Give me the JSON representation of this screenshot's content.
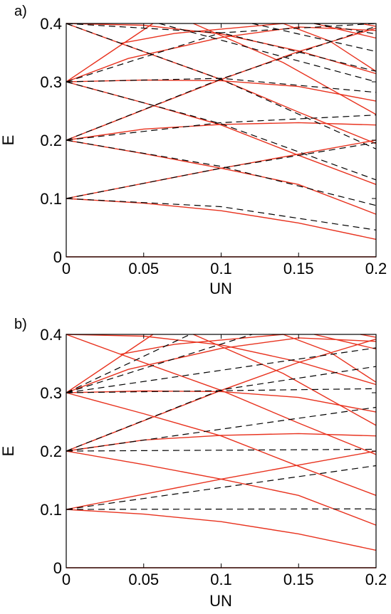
{
  "chart_data": [
    {
      "panel": "a)",
      "type": "line",
      "xlabel": "UN",
      "ylabel": "E",
      "xlim": [
        0,
        0.2
      ],
      "ylim": [
        0,
        0.4
      ],
      "xticks": [
        "0",
        "0.05",
        "0.1",
        "0.15",
        "0.2"
      ],
      "yticks": [
        "0",
        "0.1",
        "0.2",
        "0.3",
        "0.4"
      ],
      "colors": {
        "solid": "#e8321e",
        "dashed": "#000000"
      },
      "solid": [
        [
          [
            0,
            0.1
          ],
          [
            0.05,
            0.092
          ],
          [
            0.1,
            0.079
          ],
          [
            0.15,
            0.058
          ],
          [
            0.2,
            0.03
          ]
        ],
        [
          [
            0,
            0.1
          ],
          [
            0.05,
            0.126
          ],
          [
            0.1,
            0.152
          ],
          [
            0.15,
            0.176
          ],
          [
            0.2,
            0.2
          ]
        ],
        [
          [
            0,
            0.2
          ],
          [
            0.05,
            0.177
          ],
          [
            0.1,
            0.152
          ],
          [
            0.15,
            0.124
          ],
          [
            0.2,
            0.073
          ]
        ],
        [
          [
            0,
            0.2
          ],
          [
            0.05,
            0.219
          ],
          [
            0.1,
            0.227
          ],
          [
            0.15,
            0.23
          ],
          [
            0.2,
            0.226
          ]
        ],
        [
          [
            0,
            0.2
          ],
          [
            0.05,
            0.252
          ],
          [
            0.1,
            0.304
          ],
          [
            0.15,
            0.352
          ],
          [
            0.2,
            0.392
          ]
        ],
        [
          [
            0,
            0.3
          ],
          [
            0.05,
            0.264
          ],
          [
            0.1,
            0.226
          ],
          [
            0.15,
            0.174
          ],
          [
            0.2,
            0.124
          ]
        ],
        [
          [
            0,
            0.3
          ],
          [
            0.05,
            0.303
          ],
          [
            0.1,
            0.302
          ],
          [
            0.15,
            0.292
          ],
          [
            0.2,
            0.267
          ]
        ],
        [
          [
            0,
            0.3
          ],
          [
            0.04,
            0.34
          ],
          [
            0.1,
            0.376
          ],
          [
            0.15,
            0.394
          ],
          [
            0.2,
            0.388
          ]
        ],
        [
          [
            0,
            0.3
          ],
          [
            0.056,
            0.4
          ]
        ],
        [
          [
            0,
            0.4
          ],
          [
            0.05,
            0.397
          ],
          [
            0.1,
            0.382
          ],
          [
            0.15,
            0.353
          ],
          [
            0.2,
            0.314
          ]
        ],
        [
          [
            0,
            0.4
          ],
          [
            0.035,
            0.366
          ],
          [
            0.1,
            0.304
          ],
          [
            0.15,
            0.248
          ],
          [
            0.2,
            0.194
          ]
        ],
        [
          [
            0.035,
            0.366
          ],
          [
            0.07,
            0.383
          ],
          [
            0.14,
            0.4
          ]
        ],
        [
          [
            0.14,
            0.4
          ],
          [
            0.17,
            0.37
          ],
          [
            0.2,
            0.318
          ]
        ],
        [
          [
            0.082,
            0.4
          ],
          [
            0.14,
            0.333
          ],
          [
            0.2,
            0.244
          ]
        ],
        [
          [
            0.16,
            0.4
          ],
          [
            0.2,
            0.375
          ]
        ],
        [
          [
            0.19,
            0.4
          ],
          [
            0.2,
            0.395
          ]
        ]
      ],
      "dashed": [
        [
          [
            0,
            0.1
          ],
          [
            0.1,
            0.086
          ],
          [
            0.2,
            0.046
          ]
        ],
        [
          [
            0,
            0.1
          ],
          [
            0.1,
            0.152
          ],
          [
            0.2,
            0.196
          ]
        ],
        [
          [
            0,
            0.2
          ],
          [
            0.1,
            0.155
          ],
          [
            0.2,
            0.088
          ]
        ],
        [
          [
            0,
            0.2
          ],
          [
            0.1,
            0.23
          ],
          [
            0.2,
            0.243
          ]
        ],
        [
          [
            0,
            0.2
          ],
          [
            0.1,
            0.305
          ],
          [
            0.2,
            0.395
          ]
        ],
        [
          [
            0,
            0.3
          ],
          [
            0.1,
            0.228
          ],
          [
            0.2,
            0.132
          ]
        ],
        [
          [
            0,
            0.3
          ],
          [
            0.1,
            0.306
          ],
          [
            0.2,
            0.282
          ]
        ],
        [
          [
            0,
            0.3
          ],
          [
            0.1,
            0.384
          ],
          [
            0.2,
            0.4
          ]
        ],
        [
          [
            0,
            0.4
          ],
          [
            0.1,
            0.384
          ],
          [
            0.2,
            0.318
          ]
        ],
        [
          [
            0,
            0.4
          ],
          [
            0.1,
            0.304
          ],
          [
            0.2,
            0.185
          ]
        ],
        [
          [
            0.06,
            0.4
          ],
          [
            0.2,
            0.3
          ]
        ],
        [
          [
            0.12,
            0.4
          ],
          [
            0.2,
            0.352
          ]
        ],
        [
          [
            0.16,
            0.4
          ],
          [
            0.2,
            0.382
          ]
        ]
      ]
    },
    {
      "panel": "b)",
      "type": "line",
      "xlabel": "UN",
      "ylabel": "E",
      "xlim": [
        0,
        0.2
      ],
      "ylim": [
        0,
        0.4
      ],
      "xticks": [
        "0",
        "0.05",
        "0.1",
        "0.15",
        "0.2"
      ],
      "yticks": [
        "0",
        "0.1",
        "0.2",
        "0.3",
        "0.4"
      ],
      "colors": {
        "solid": "#e8321e",
        "dashed": "#000000"
      },
      "solid": [
        [
          [
            0,
            0.1
          ],
          [
            0.05,
            0.092
          ],
          [
            0.1,
            0.079
          ],
          [
            0.15,
            0.058
          ],
          [
            0.2,
            0.03
          ]
        ],
        [
          [
            0,
            0.1
          ],
          [
            0.05,
            0.126
          ],
          [
            0.1,
            0.152
          ],
          [
            0.15,
            0.176
          ],
          [
            0.2,
            0.2
          ]
        ],
        [
          [
            0,
            0.2
          ],
          [
            0.05,
            0.177
          ],
          [
            0.1,
            0.152
          ],
          [
            0.15,
            0.124
          ],
          [
            0.2,
            0.073
          ]
        ],
        [
          [
            0,
            0.2
          ],
          [
            0.05,
            0.219
          ],
          [
            0.1,
            0.227
          ],
          [
            0.15,
            0.23
          ],
          [
            0.2,
            0.226
          ]
        ],
        [
          [
            0,
            0.2
          ],
          [
            0.05,
            0.252
          ],
          [
            0.1,
            0.304
          ],
          [
            0.15,
            0.352
          ],
          [
            0.2,
            0.392
          ]
        ],
        [
          [
            0,
            0.3
          ],
          [
            0.05,
            0.264
          ],
          [
            0.1,
            0.226
          ],
          [
            0.15,
            0.174
          ],
          [
            0.2,
            0.124
          ]
        ],
        [
          [
            0,
            0.3
          ],
          [
            0.05,
            0.303
          ],
          [
            0.1,
            0.302
          ],
          [
            0.15,
            0.292
          ],
          [
            0.2,
            0.267
          ]
        ],
        [
          [
            0,
            0.3
          ],
          [
            0.04,
            0.34
          ],
          [
            0.1,
            0.376
          ],
          [
            0.15,
            0.394
          ],
          [
            0.2,
            0.388
          ]
        ],
        [
          [
            0,
            0.3
          ],
          [
            0.056,
            0.4
          ]
        ],
        [
          [
            0,
            0.4
          ],
          [
            0.05,
            0.397
          ],
          [
            0.1,
            0.382
          ],
          [
            0.15,
            0.353
          ],
          [
            0.2,
            0.314
          ]
        ],
        [
          [
            0,
            0.4
          ],
          [
            0.035,
            0.366
          ],
          [
            0.1,
            0.304
          ],
          [
            0.15,
            0.248
          ],
          [
            0.2,
            0.194
          ]
        ],
        [
          [
            0.035,
            0.366
          ],
          [
            0.07,
            0.383
          ],
          [
            0.14,
            0.4
          ]
        ],
        [
          [
            0.14,
            0.4
          ],
          [
            0.17,
            0.37
          ],
          [
            0.2,
            0.318
          ]
        ],
        [
          [
            0.082,
            0.4
          ],
          [
            0.14,
            0.333
          ],
          [
            0.2,
            0.244
          ]
        ],
        [
          [
            0.16,
            0.4
          ],
          [
            0.2,
            0.375
          ]
        ],
        [
          [
            0.19,
            0.4
          ],
          [
            0.2,
            0.395
          ]
        ]
      ],
      "dashed": [
        [
          [
            0,
            0.1
          ],
          [
            0.2,
            0.101
          ]
        ],
        [
          [
            0,
            0.1
          ],
          [
            0.2,
            0.175
          ]
        ],
        [
          [
            0,
            0.2
          ],
          [
            0.2,
            0.203
          ]
        ],
        [
          [
            0,
            0.2
          ],
          [
            0.2,
            0.275
          ]
        ],
        [
          [
            0,
            0.2
          ],
          [
            0.1,
            0.305
          ],
          [
            0.2,
            0.345
          ]
        ],
        [
          [
            0,
            0.3
          ],
          [
            0.2,
            0.307
          ]
        ],
        [
          [
            0,
            0.3
          ],
          [
            0.2,
            0.377
          ]
        ],
        [
          [
            0,
            0.3
          ],
          [
            0.08,
            0.4
          ]
        ],
        [
          [
            0,
            0.3
          ],
          [
            0.12,
            0.4
          ]
        ]
      ]
    }
  ]
}
